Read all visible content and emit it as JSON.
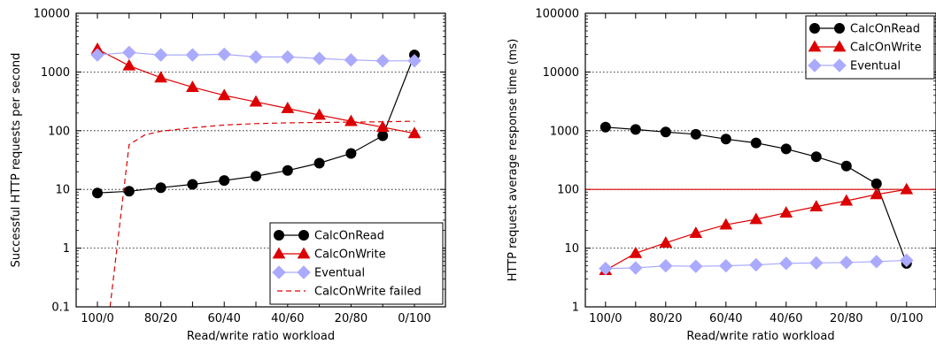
{
  "chart_data": [
    {
      "type": "line",
      "yscale": "log",
      "title": "",
      "xlabel": "Read/write ratio workload",
      "ylabel": "Successful HTTP requests per second",
      "ylim": [
        0.1,
        10000
      ],
      "y_ticks": [
        "0.1",
        "1",
        "10",
        "100",
        "1000",
        "10000"
      ],
      "x_ticks": [
        "100/0",
        "80/20",
        "60/40",
        "40/60",
        "20/80",
        "0/100"
      ],
      "x_read_pct": [
        100,
        90,
        80,
        70,
        60,
        50,
        40,
        30,
        20,
        10,
        0
      ],
      "grid": "y-dotted",
      "legend": "bottom-right",
      "series": [
        {
          "name": "CalcOnRead",
          "color": "#000000",
          "marker": "circle",
          "values": [
            8.7,
            9.3,
            10.7,
            12.2,
            14.2,
            16.8,
            21,
            28,
            41,
            82,
            1950
          ]
        },
        {
          "name": "CalcOnWrite",
          "color": "#dd0000",
          "marker": "triangle",
          "values": [
            2450,
            1280,
            800,
            550,
            400,
            310,
            240,
            185,
            145,
            115,
            90
          ]
        },
        {
          "name": "Eventual",
          "color": "#aaaaff",
          "marker": "diamond",
          "values": [
            1950,
            2150,
            1950,
            1950,
            2000,
            1800,
            1800,
            1700,
            1600,
            1550,
            1550
          ]
        },
        {
          "name": "CalcOnWrite failed",
          "color": "#dd0000",
          "dashed": true,
          "x_read_pct": [
            96,
            90,
            85,
            80,
            70,
            60,
            50,
            40,
            30,
            20,
            10,
            0
          ],
          "values": [
            0.1,
            58,
            85,
            98,
            112,
            125,
            132,
            136,
            138,
            140,
            142,
            145
          ]
        }
      ]
    },
    {
      "type": "line",
      "yscale": "log",
      "title": "",
      "xlabel": "Read/write ratio workload",
      "ylabel": "HTTP request average response time (ms)",
      "ylim": [
        1,
        100000
      ],
      "y_ticks": [
        "1",
        "10",
        "100",
        "1000",
        "10000",
        "100000"
      ],
      "x_ticks": [
        "100/0",
        "80/20",
        "60/40",
        "40/60",
        "20/80",
        "0/100"
      ],
      "x_read_pct": [
        100,
        90,
        80,
        70,
        60,
        50,
        40,
        30,
        20,
        10,
        0
      ],
      "grid": "y-dotted",
      "reference_line": 100,
      "legend": "top-right",
      "series": [
        {
          "name": "CalcOnRead",
          "color": "#000000",
          "marker": "circle",
          "values": [
            1150,
            1050,
            950,
            870,
            720,
            620,
            490,
            360,
            250,
            125,
            5.5
          ]
        },
        {
          "name": "CalcOnWrite",
          "color": "#dd0000",
          "marker": "triangle",
          "values": [
            4.2,
            8.2,
            12.3,
            18,
            25,
            31,
            40,
            51,
            64,
            82,
            100
          ]
        },
        {
          "name": "Eventual",
          "color": "#aaaaff",
          "marker": "diamond",
          "values": [
            4.5,
            4.6,
            5.0,
            4.9,
            5.0,
            5.2,
            5.5,
            5.6,
            5.7,
            5.9,
            6.2
          ]
        }
      ]
    }
  ]
}
